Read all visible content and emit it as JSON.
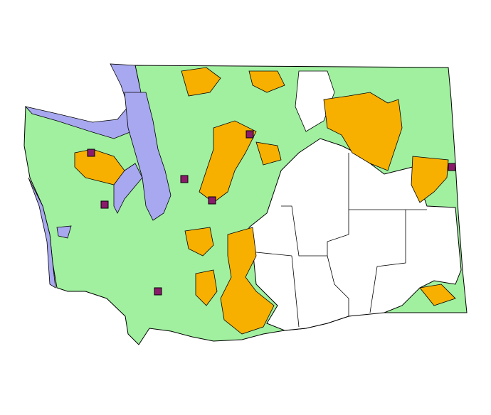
{
  "map": {
    "colors": {
      "land_primary": "#a0f0a0",
      "land_other": "#ffffff",
      "highlight_area": "#f8b000",
      "water": "#a8a8f0",
      "marker": "#8b1a6b",
      "outline": "#000000"
    },
    "legend": null
  }
}
